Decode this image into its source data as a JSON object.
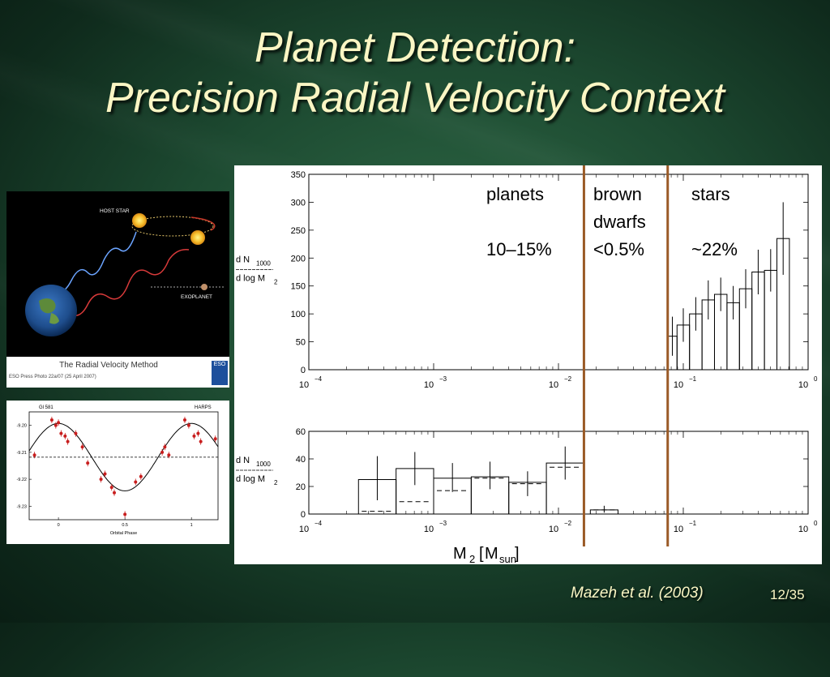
{
  "slide": {
    "title_line1": "Planet Detection:",
    "title_line2": "Precision Radial Velocity Context",
    "citation": "Mazeh et al. (2003)",
    "page": "12/35"
  },
  "rv_method_image": {
    "label_host_star": "HOST STAR",
    "label_exoplanet": "EXOPLANET",
    "caption": "The Radial Velocity Method",
    "credit": "ESO Press Photo 22a/07 (25 April 2007)",
    "logo_text": "ESO"
  },
  "chart_data": [
    {
      "type": "scatter",
      "title_left": "Gl 581",
      "title_right": "HARPS",
      "xlabel": "Orbital Phase",
      "ylabel": "",
      "xlim": [
        -0.22,
        1.2
      ],
      "ylim": [
        -9.235,
        -9.195
      ],
      "x_ticks": [
        0,
        0.5,
        1
      ],
      "x_tick_labels": [
        "0",
        "0.5",
        "1"
      ],
      "y_ticks": [
        -9.2,
        -9.21,
        -9.22,
        -9.23
      ],
      "y_tick_labels": [
        "-9.20",
        "-9.21",
        "-9.22",
        "-9.23"
      ],
      "reference_line_y": -9.2118,
      "curve": {
        "mean": -9.2118,
        "amplitude": 0.0125,
        "phase_of_max": 0.0
      },
      "points": [
        {
          "x": -0.18,
          "y": -9.211
        },
        {
          "x": -0.05,
          "y": -9.198
        },
        {
          "x": -0.02,
          "y": -9.2
        },
        {
          "x": 0.0,
          "y": -9.199
        },
        {
          "x": 0.02,
          "y": -9.203
        },
        {
          "x": 0.05,
          "y": -9.204
        },
        {
          "x": 0.07,
          "y": -9.206
        },
        {
          "x": 0.13,
          "y": -9.203
        },
        {
          "x": 0.18,
          "y": -9.208
        },
        {
          "x": 0.22,
          "y": -9.214
        },
        {
          "x": 0.32,
          "y": -9.22
        },
        {
          "x": 0.35,
          "y": -9.218
        },
        {
          "x": 0.4,
          "y": -9.223
        },
        {
          "x": 0.42,
          "y": -9.225
        },
        {
          "x": 0.5,
          "y": -9.233
        },
        {
          "x": 0.58,
          "y": -9.221
        },
        {
          "x": 0.62,
          "y": -9.219
        },
        {
          "x": 0.78,
          "y": -9.21
        },
        {
          "x": 0.8,
          "y": -9.208
        },
        {
          "x": 0.83,
          "y": -9.211
        },
        {
          "x": 0.95,
          "y": -9.198
        },
        {
          "x": 0.98,
          "y": -9.2
        },
        {
          "x": 1.02,
          "y": -9.204
        },
        {
          "x": 1.05,
          "y": -9.203
        },
        {
          "x": 1.07,
          "y": -9.206
        },
        {
          "x": 1.18,
          "y": -9.205
        }
      ]
    },
    {
      "type": "bar",
      "scale": "log-x",
      "xlim": [
        0.0001,
        1
      ],
      "x_tick_labels": [
        "10",
        "10",
        "10",
        "10",
        "10"
      ],
      "x_tick_exponents": [
        "−4",
        "−3",
        "−2",
        "−1",
        "0"
      ],
      "ylim": [
        0,
        350
      ],
      "y_tick_labels": [
        "0",
        "50",
        "100",
        "150",
        "200",
        "250",
        "300",
        "350"
      ],
      "ylabel_num": "d N",
      "ylabel_num_sub": "1000",
      "ylabel_den": "d log M",
      "ylabel_den_sub": "2",
      "bins": [
        {
          "x0": 0.075,
          "x1": 0.0891,
          "value": 60,
          "err": 35
        },
        {
          "x0": 0.0891,
          "x1": 0.1122,
          "value": 80,
          "err": 30
        },
        {
          "x0": 0.1122,
          "x1": 0.1413,
          "value": 100,
          "err": 30
        },
        {
          "x0": 0.1413,
          "x1": 0.1778,
          "value": 125,
          "err": 35
        },
        {
          "x0": 0.1778,
          "x1": 0.2239,
          "value": 135,
          "err": 30
        },
        {
          "x0": 0.2239,
          "x1": 0.2818,
          "value": 120,
          "err": 30
        },
        {
          "x0": 0.2818,
          "x1": 0.3548,
          "value": 145,
          "err": 35
        },
        {
          "x0": 0.3548,
          "x1": 0.4467,
          "value": 175,
          "err": 40
        },
        {
          "x0": 0.4467,
          "x1": 0.5623,
          "value": 178,
          "err": 38
        },
        {
          "x0": 0.5623,
          "x1": 0.7079,
          "value": 235,
          "err": 65
        }
      ],
      "region_labels": [
        {
          "name": "planets",
          "fraction": "10–15%"
        },
        {
          "name": "brown",
          "name_line2": "dwarfs",
          "fraction": "<0.5%"
        },
        {
          "name": "stars",
          "fraction": "~22%"
        }
      ]
    },
    {
      "type": "bar",
      "scale": "log-x",
      "xlim": [
        0.0001,
        1
      ],
      "x_tick_labels": [
        "10",
        "10",
        "10",
        "10",
        "10"
      ],
      "x_tick_exponents": [
        "−4",
        "−3",
        "−2",
        "−1",
        "0"
      ],
      "ylim": [
        0,
        60
      ],
      "y_tick_labels": [
        "0",
        "20",
        "40",
        "60"
      ],
      "ylabel_num": "d N",
      "ylabel_num_sub": "1000",
      "ylabel_den": "d log M",
      "ylabel_den_sub": "2",
      "xlabel": "M",
      "xlabel_sub": "2",
      "xlabel_unit": "M",
      "xlabel_unit_sub": "sun",
      "bins": [
        {
          "x0": 0.00025,
          "x1": 0.0005,
          "value": 25,
          "dashed": 2,
          "err_lo": 10,
          "err_hi": 42
        },
        {
          "x0": 0.0005,
          "x1": 0.001,
          "value": 33,
          "dashed": 9,
          "err_lo": 21,
          "err_hi": 45
        },
        {
          "x0": 0.001,
          "x1": 0.002,
          "value": 26,
          "dashed": 17,
          "err_lo": 16,
          "err_hi": 37
        },
        {
          "x0": 0.002,
          "x1": 0.004,
          "value": 27,
          "dashed": 26,
          "err_lo": 18,
          "err_hi": 38
        },
        {
          "x0": 0.004,
          "x1": 0.008,
          "value": 23,
          "dashed": 22,
          "err_lo": 13,
          "err_hi": 31
        },
        {
          "x0": 0.008,
          "x1": 0.016,
          "value": 37,
          "dashed": 34,
          "err_lo": 25,
          "err_hi": 49
        },
        {
          "x0": 0.018,
          "x1": 0.03,
          "value": 3,
          "dashed": 3,
          "err_lo": 1,
          "err_hi": 6
        }
      ],
      "boundaries": [
        0.016,
        0.075
      ],
      "boundary_color": "#9a5a26"
    }
  ]
}
